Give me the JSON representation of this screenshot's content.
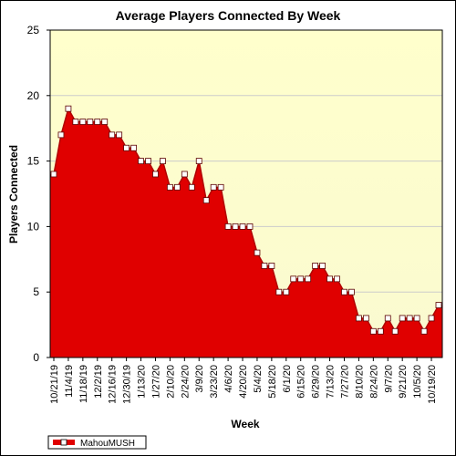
{
  "chart_data": {
    "type": "area",
    "title": "Average Players Connected By Week",
    "xlabel": "Week",
    "ylabel": "Players Connected",
    "ylim": [
      0,
      25
    ],
    "yticks": [
      0,
      5,
      10,
      15,
      20,
      25
    ],
    "grid": true,
    "legend_placement": "bottom-left",
    "colors": {
      "series": "#e00000",
      "plot_bg_top": "#ffffcc",
      "plot_bg_bottom": "#fafad0",
      "marker_fill": "#ffffff"
    },
    "x_tick_labels": [
      "10/21/19",
      "11/4/19",
      "11/18/19",
      "12/2/19",
      "12/16/19",
      "12/30/19",
      "1/13/20",
      "1/27/20",
      "2/10/20",
      "2/24/20",
      "3/9/20",
      "3/23/20",
      "4/6/20",
      "4/20/20",
      "5/4/20",
      "5/18/20",
      "6/1/20",
      "6/15/20",
      "6/29/20",
      "7/13/20",
      "7/27/20",
      "8/10/20",
      "8/24/20",
      "9/7/20",
      "9/21/20",
      "10/5/20",
      "10/19/20"
    ],
    "series": [
      {
        "name": "MahouMUSH",
        "values": [
          14,
          17,
          19,
          18,
          18,
          18,
          18,
          18,
          17,
          17,
          16,
          16,
          15,
          15,
          14,
          15,
          13,
          13,
          14,
          13,
          15,
          12,
          13,
          13,
          10,
          10,
          10,
          10,
          8,
          7,
          7,
          5,
          5,
          6,
          6,
          6,
          7,
          7,
          6,
          6,
          5,
          5,
          3,
          3,
          2,
          2,
          3,
          2,
          3,
          3,
          3,
          2,
          3,
          4
        ]
      }
    ]
  }
}
